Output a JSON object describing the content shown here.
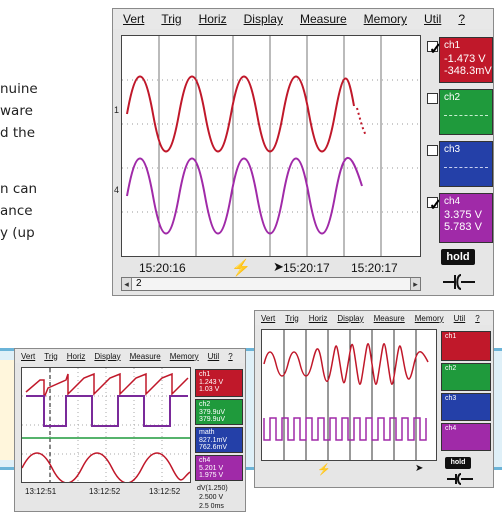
{
  "paragraph_1": [
    "nuine",
    "ware",
    "d the"
  ],
  "paragraph_2": [
    "n can",
    "ance",
    "y (up"
  ],
  "main_scope": {
    "menu": [
      "Vert",
      "Trig",
      "Horiz",
      "Display",
      "Measure",
      "Memory",
      "Util",
      "?"
    ],
    "channels": [
      {
        "name": "ch1",
        "icon": "mode-icon",
        "values": [
          "-1.473  V",
          "-348.3mV"
        ],
        "checked": true,
        "color": "#c0182a"
      },
      {
        "name": "ch2",
        "icon": "mode-icon",
        "values": [],
        "checked": false,
        "color": "#1f9a3c"
      },
      {
        "name": "ch3",
        "icon": "mode-icon",
        "values": [],
        "checked": false,
        "color": "#2440a8"
      },
      {
        "name": "ch4",
        "icon": "mode-icon",
        "values": [
          "3.375  V",
          "5.783  V"
        ],
        "checked": true,
        "color": "#a02aa8"
      }
    ],
    "timestamps": [
      "15:20:16",
      "15:20:17",
      "15:20:17"
    ],
    "hold_label": "hold",
    "scroll_value": "2",
    "level_markers": [
      "1",
      "4"
    ]
  },
  "left_scope": {
    "menu": [
      "Vert",
      "Trig",
      "Horiz",
      "Display",
      "Measure",
      "Memory",
      "Util",
      "?"
    ],
    "channels": [
      {
        "name": "ch1",
        "values": [
          "1.243  V",
          "1.03  V"
        ],
        "color": "#c0182a"
      },
      {
        "name": "ch2",
        "values": [
          "379.9uV",
          "379.9uV"
        ],
        "color": "#1f9a3c"
      },
      {
        "name": "math",
        "values": [
          "827.1mV",
          "762.6mV"
        ],
        "color": "#2440a8"
      },
      {
        "name": "ch4",
        "values": [
          "5.201  V",
          "1.975  V"
        ],
        "color": "#a02aa8"
      }
    ],
    "timestamps": [
      "13:12:51",
      "13:12:52",
      "13:12:52"
    ],
    "bottom_values": [
      "dV(1.250)",
      "2.500  V",
      "2.5 0ms"
    ]
  },
  "right_scope": {
    "menu": [
      "Vert",
      "Trig",
      "Horiz",
      "Display",
      "Measure",
      "Memory",
      "Util",
      "?"
    ],
    "channels": [
      {
        "name": "ch1",
        "color": "#c0182a"
      },
      {
        "name": "ch2",
        "color": "#1f9a3c"
      },
      {
        "name": "ch3",
        "color": "#2440a8"
      },
      {
        "name": "ch4",
        "color": "#a02aa8"
      }
    ],
    "hold_label": "hold"
  }
}
